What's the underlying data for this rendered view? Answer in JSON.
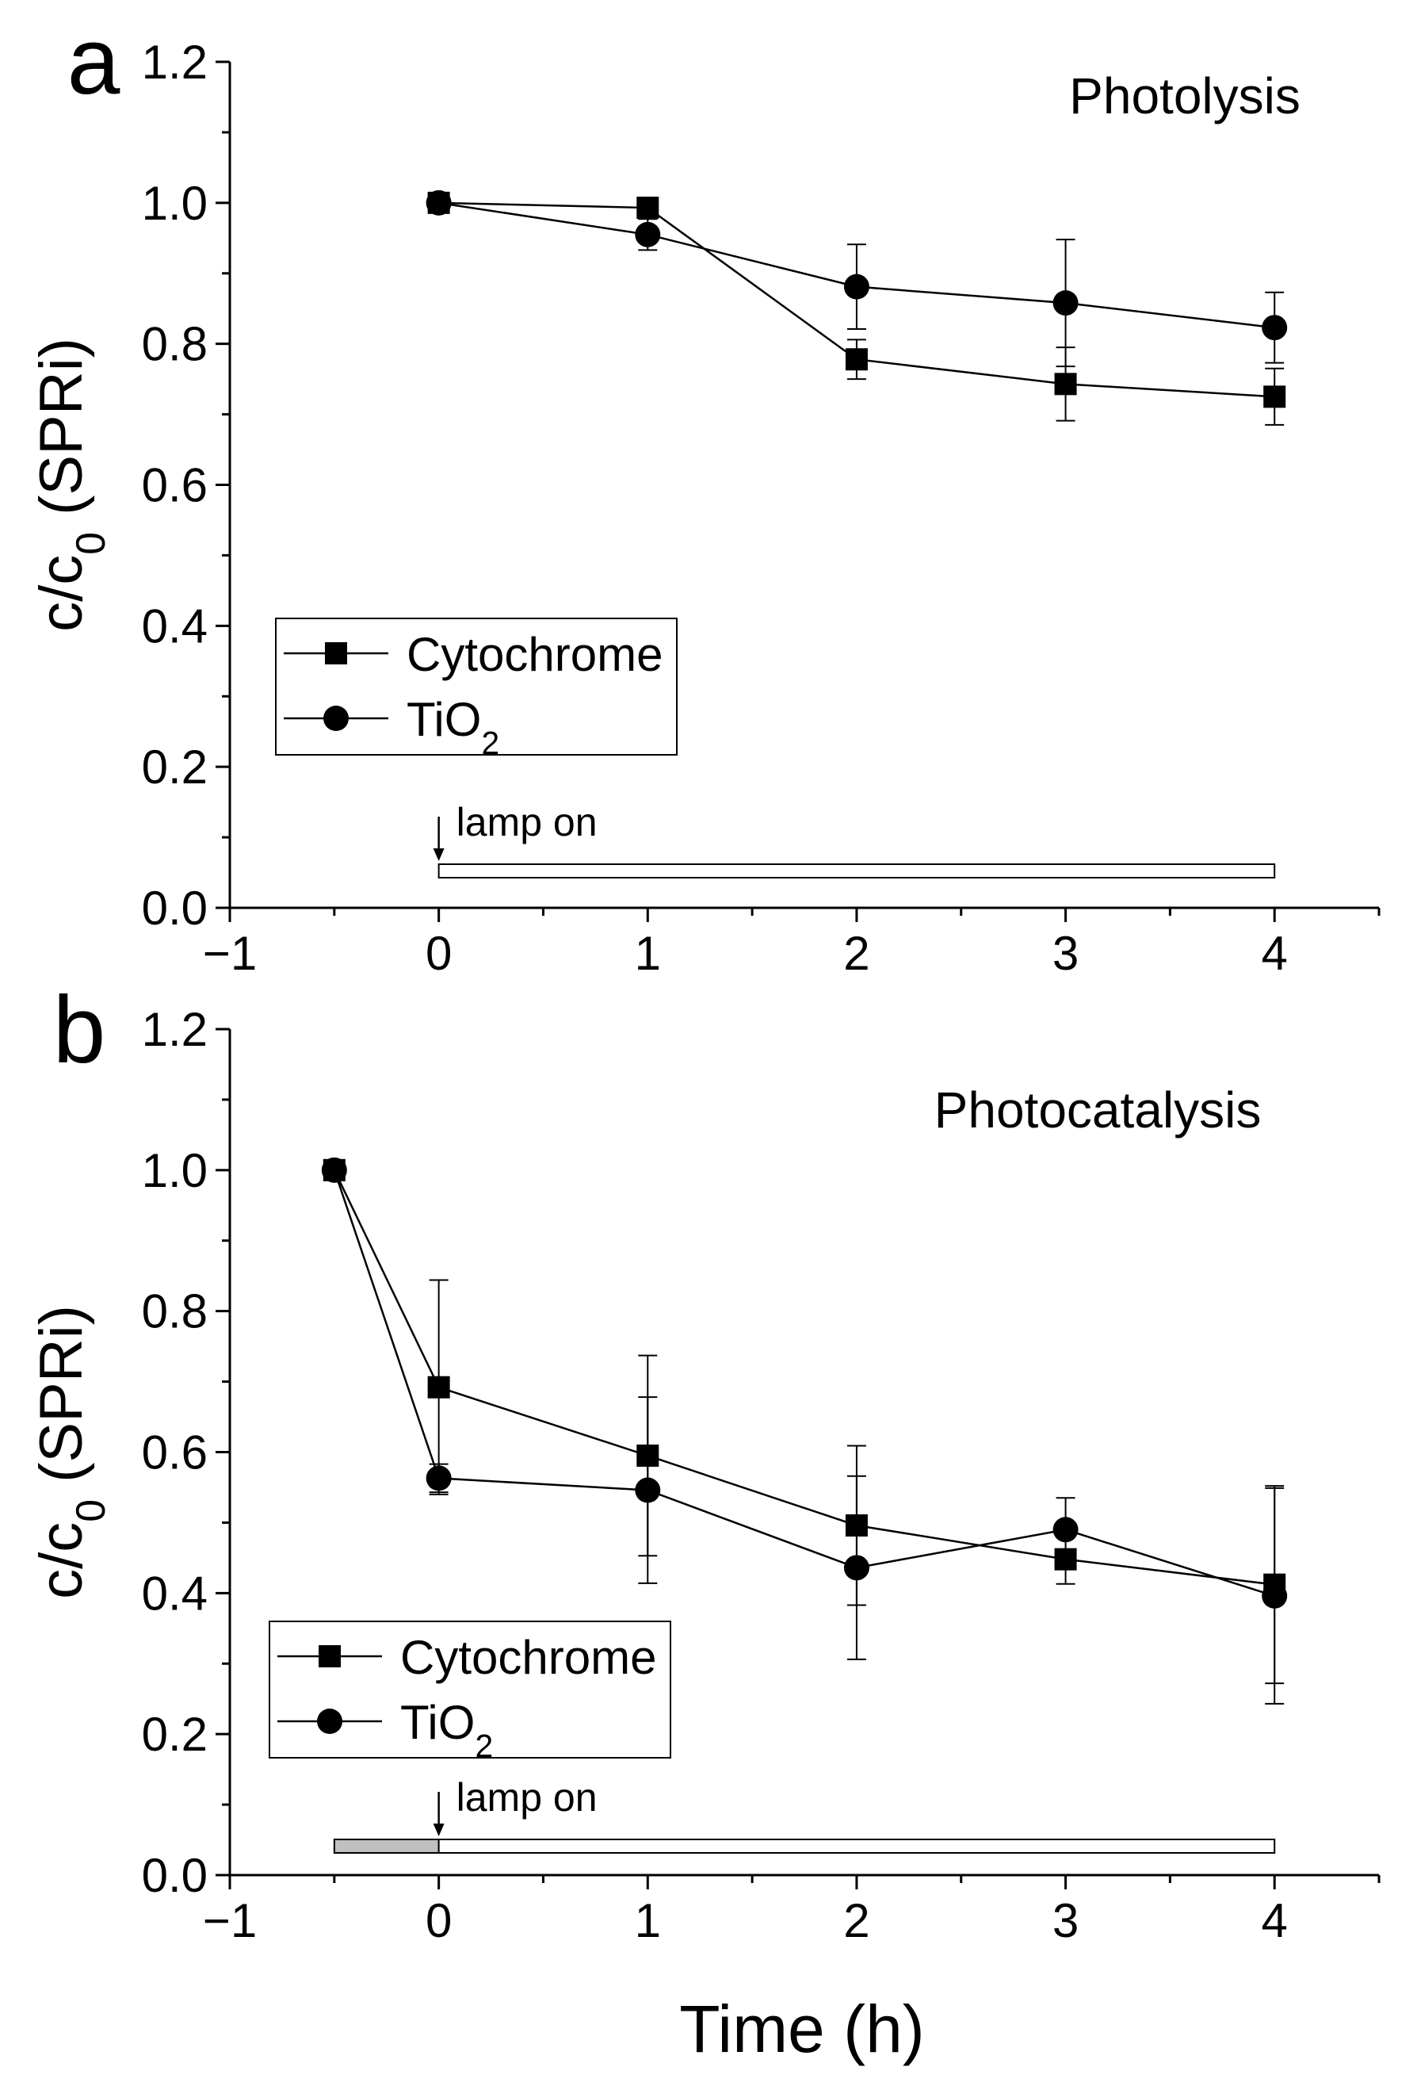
{
  "figure": {
    "xlabel": "Time (h)",
    "background": "#ffffff",
    "ink": "#000000"
  },
  "chart_data": [
    {
      "type": "line",
      "panel_label": "a",
      "title": "Photolysis",
      "ylabel": {
        "base": "c/c",
        "sub": "0",
        "rest": " (SPRi)"
      },
      "xlim": [
        -1,
        4.5
      ],
      "ylim": [
        0,
        1.2
      ],
      "xticks": [
        {
          "value": -1,
          "label": "−1"
        },
        {
          "value": 0,
          "label": "0"
        },
        {
          "value": 1,
          "label": "1"
        },
        {
          "value": 2,
          "label": "2"
        },
        {
          "value": 3,
          "label": "3"
        },
        {
          "value": 4,
          "label": "4"
        }
      ],
      "yticks": [
        {
          "value": 0,
          "label": "0.0"
        },
        {
          "value": 0.2,
          "label": "0.2"
        },
        {
          "value": 0.4,
          "label": "0.4"
        },
        {
          "value": 0.6,
          "label": "0.6"
        },
        {
          "value": 0.8,
          "label": "0.8"
        },
        {
          "value": 1.0,
          "label": "1.0"
        },
        {
          "value": 1.2,
          "label": "1.2"
        }
      ],
      "grid": false,
      "legend": {
        "placement": "center-left",
        "entries": [
          {
            "base": "Cytochrome",
            "sub": "",
            "marker": "square"
          },
          {
            "base": "TiO",
            "sub": "2",
            "marker": "circle"
          }
        ]
      },
      "series": [
        {
          "name": "Cytochrome",
          "marker": "square",
          "x": [
            0,
            1,
            2,
            3,
            4
          ],
          "y": [
            1.0,
            0.993,
            0.778,
            0.743,
            0.725
          ],
          "err": [
            0.0,
            0.0,
            0.028,
            0.052,
            0.04
          ]
        },
        {
          "name": "TiO2",
          "marker": "circle",
          "x": [
            0,
            1,
            2,
            3,
            4
          ],
          "y": [
            1.0,
            0.955,
            0.881,
            0.858,
            0.823
          ],
          "err": [
            0.0,
            0.022,
            0.06,
            0.09,
            0.05
          ]
        }
      ],
      "annotation": {
        "text": "lamp on",
        "x": 0
      },
      "bars": [
        {
          "x0": 0,
          "x1": 4,
          "fill": "#ffffff"
        }
      ]
    },
    {
      "type": "line",
      "panel_label": "b",
      "title": "Photocatalysis",
      "ylabel": {
        "base": "c/c",
        "sub": "0",
        "rest": " (SPRi)"
      },
      "xlim": [
        -1,
        4.5
      ],
      "ylim": [
        0,
        1.2
      ],
      "xticks": [
        {
          "value": -1,
          "label": "−1"
        },
        {
          "value": 0,
          "label": "0"
        },
        {
          "value": 1,
          "label": "1"
        },
        {
          "value": 2,
          "label": "2"
        },
        {
          "value": 3,
          "label": "3"
        },
        {
          "value": 4,
          "label": "4"
        }
      ],
      "yticks": [
        {
          "value": 0,
          "label": "0.0"
        },
        {
          "value": 0.2,
          "label": "0.2"
        },
        {
          "value": 0.4,
          "label": "0.4"
        },
        {
          "value": 0.6,
          "label": "0.6"
        },
        {
          "value": 0.8,
          "label": "0.8"
        },
        {
          "value": 1.0,
          "label": "1.0"
        },
        {
          "value": 1.2,
          "label": "1.2"
        }
      ],
      "grid": false,
      "legend": {
        "placement": "bottom-left",
        "entries": [
          {
            "base": "Cytochrome",
            "sub": "",
            "marker": "square"
          },
          {
            "base": "TiO",
            "sub": "2",
            "marker": "circle"
          }
        ]
      },
      "series": [
        {
          "name": "Cytochrome",
          "marker": "square",
          "x": [
            -0.5,
            0,
            1,
            2,
            3,
            4
          ],
          "y": [
            1.0,
            0.692,
            0.595,
            0.496,
            0.448,
            0.412
          ],
          "err": [
            0.0,
            0.152,
            0.142,
            0.113,
            0.035,
            0.14
          ]
        },
        {
          "name": "TiO2",
          "marker": "circle",
          "x": [
            -0.5,
            0,
            1,
            2,
            3,
            4
          ],
          "y": [
            1.0,
            0.563,
            0.546,
            0.436,
            0.49,
            0.396
          ],
          "err": [
            0.0,
            0.02,
            0.132,
            0.13,
            0.045,
            0.153
          ]
        }
      ],
      "annotation": {
        "text": "lamp on",
        "x": 0
      },
      "bars": [
        {
          "x0": -0.5,
          "x1": 0,
          "fill": "#c0c0c0"
        },
        {
          "x0": 0,
          "x1": 4,
          "fill": "#ffffff"
        }
      ]
    }
  ]
}
